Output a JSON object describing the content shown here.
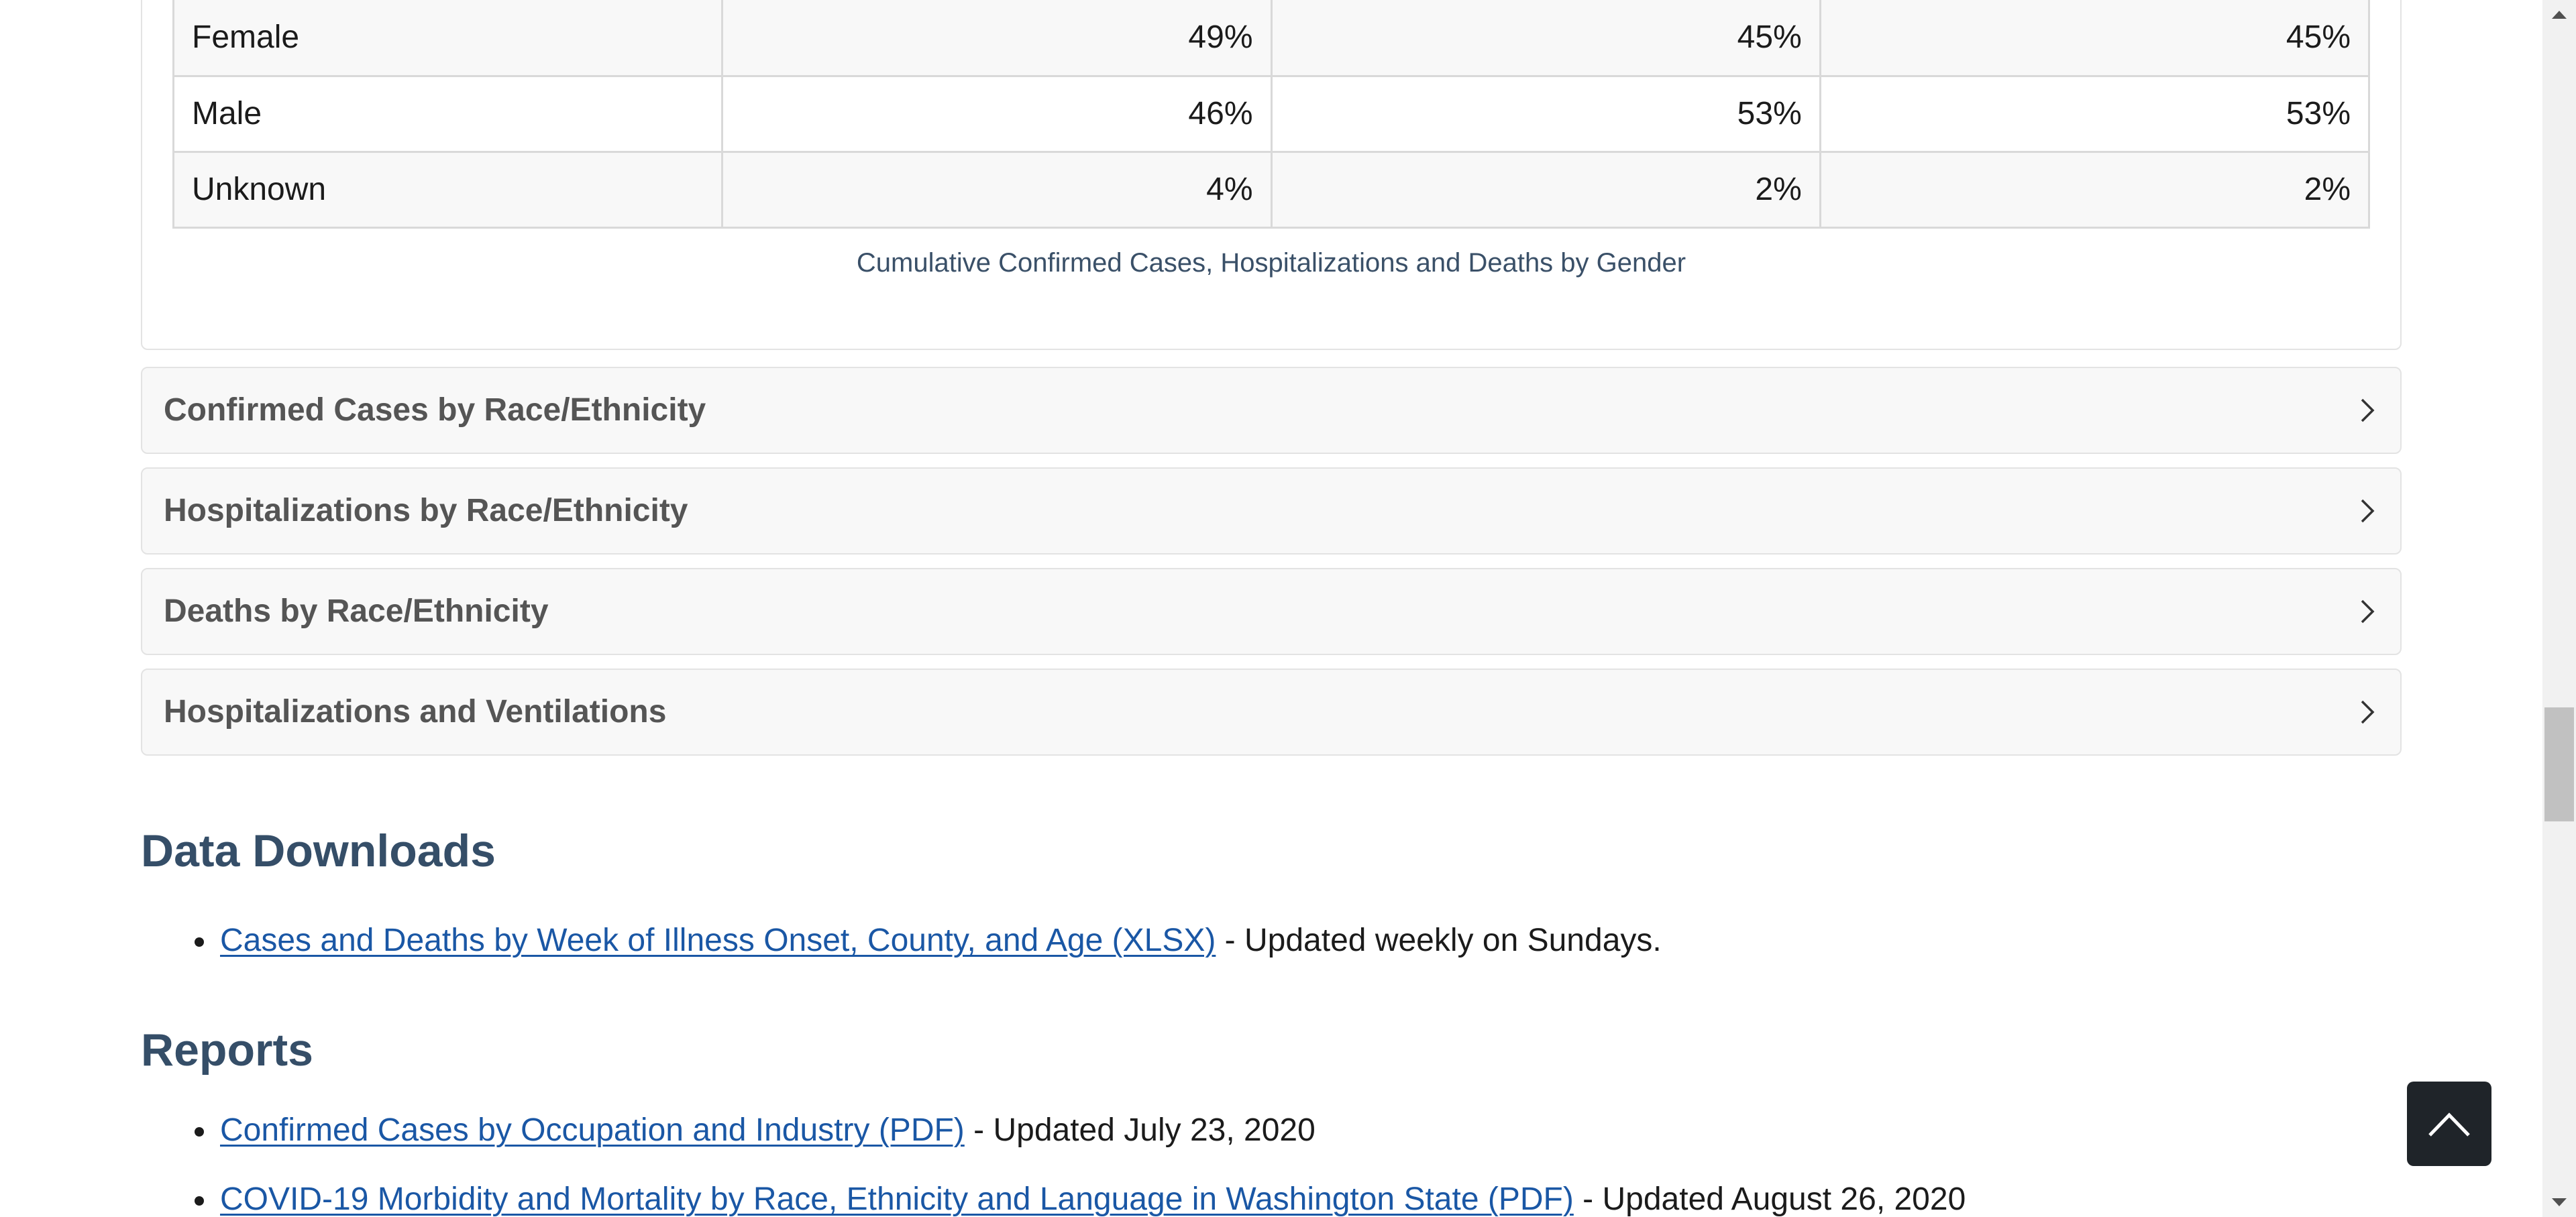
{
  "gender_table": {
    "rows": [
      {
        "label": "Female",
        "cases": "49%",
        "hospitalizations": "45%",
        "deaths": "45%"
      },
      {
        "label": "Male",
        "cases": "46%",
        "hospitalizations": "53%",
        "deaths": "53%"
      },
      {
        "label": "Unknown",
        "cases": "4%",
        "hospitalizations": "2%",
        "deaths": "2%"
      }
    ],
    "caption": "Cumulative Confirmed Cases, Hospitalizations and Deaths by Gender"
  },
  "accordions": [
    {
      "title": "Confirmed Cases by Race/Ethnicity",
      "icon": "chevron-right-icon"
    },
    {
      "title": "Hospitalizations by Race/Ethnicity",
      "icon": "chevron-right-icon"
    },
    {
      "title": "Deaths by Race/Ethnicity",
      "icon": "chevron-right-icon"
    },
    {
      "title": "Hospitalizations and Ventilations",
      "icon": "chevron-right-icon"
    }
  ],
  "data_downloads": {
    "heading": "Data Downloads",
    "items": [
      {
        "link_text": "Cases and Deaths by Week of Illness Onset, County, and Age (XLSX)",
        "suffix": " - Updated weekly on Sundays."
      }
    ]
  },
  "reports": {
    "heading": "Reports",
    "items": [
      {
        "link_text": "Confirmed Cases by Occupation and Industry (PDF)",
        "suffix": " - Updated July 23, 2020"
      },
      {
        "link_text": "COVID-19 Morbidity and Mortality by Race, Ethnicity and Language in Washington State (PDF)",
        "suffix": " - Updated August 26, 2020"
      }
    ]
  },
  "back_to_top": {
    "icon": "chevron-up-icon"
  },
  "colors": {
    "heading": "#354e68",
    "link": "#1a57a5",
    "accordion_bg": "#f8f8f8",
    "button_bg": "#1f2429"
  }
}
